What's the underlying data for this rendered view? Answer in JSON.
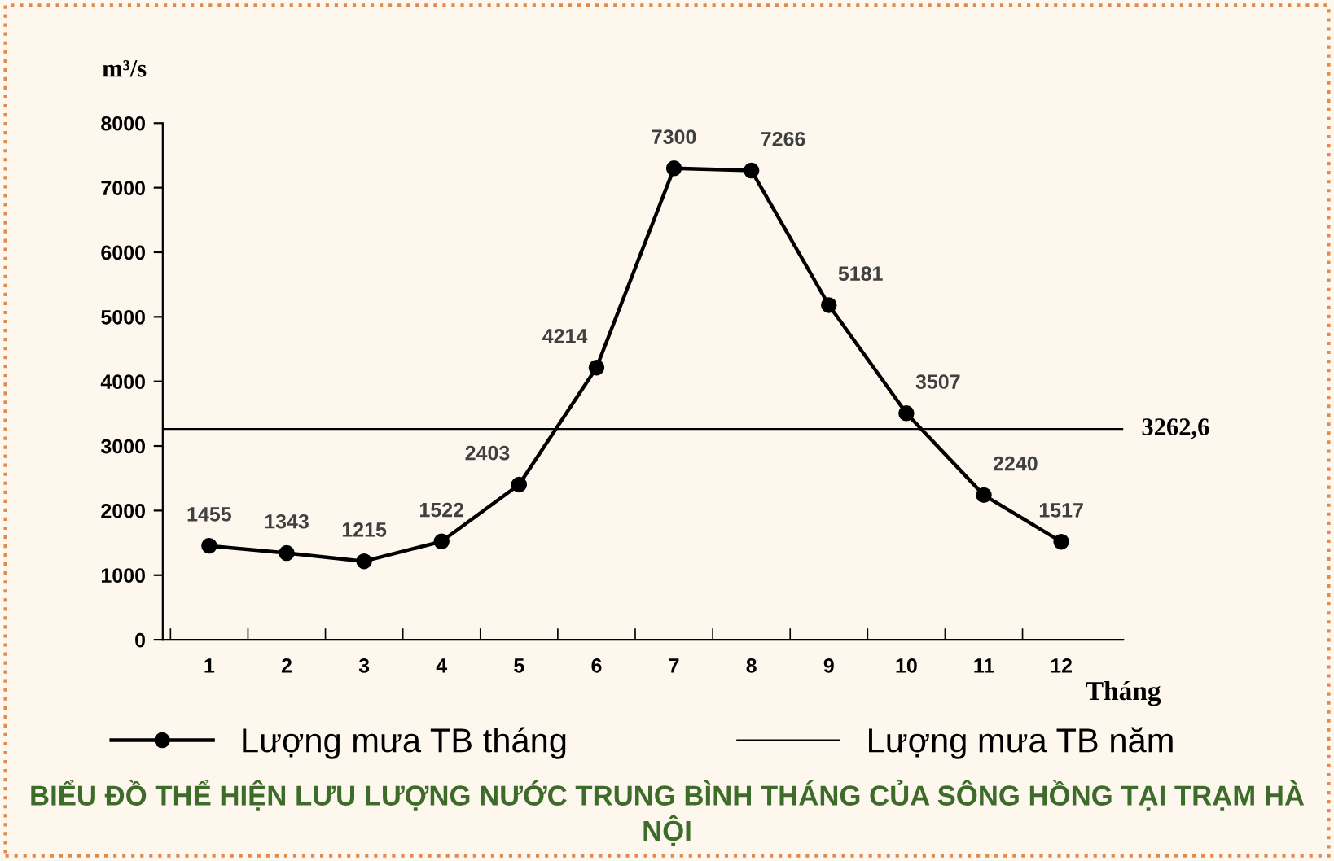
{
  "chart_data": {
    "type": "line",
    "title": "BIỂU ĐỒ THỂ HIỆN LƯU LƯỢNG NƯỚC TRUNG BÌNH THÁNG CỦA SÔNG HỒNG TẠI TRẠM HÀ NỘI",
    "ylabel": "m³/s",
    "xlabel": "Tháng",
    "categories": [
      "1",
      "2",
      "3",
      "4",
      "5",
      "6",
      "7",
      "8",
      "9",
      "10",
      "11",
      "12"
    ],
    "series": [
      {
        "name": "Lượng mưa TB tháng",
        "color": "#000000",
        "values": [
          1455,
          1343,
          1215,
          1522,
          2403,
          4214,
          7300,
          7266,
          5181,
          3507,
          2240,
          1517
        ]
      }
    ],
    "ref_lines": [
      {
        "axis": "y",
        "value": 3262.6,
        "label": "Lượng mưa TB năm",
        "color": "#000000"
      }
    ],
    "annotations": [
      "3262,6"
    ],
    "ylim": [
      0,
      8000
    ],
    "yticks": [
      0,
      1000,
      2000,
      3000,
      4000,
      5000,
      6000,
      7000,
      8000
    ],
    "data_labels": true,
    "marker": "circle",
    "line_style": "solid",
    "grid": false,
    "legend": "bottom"
  }
}
